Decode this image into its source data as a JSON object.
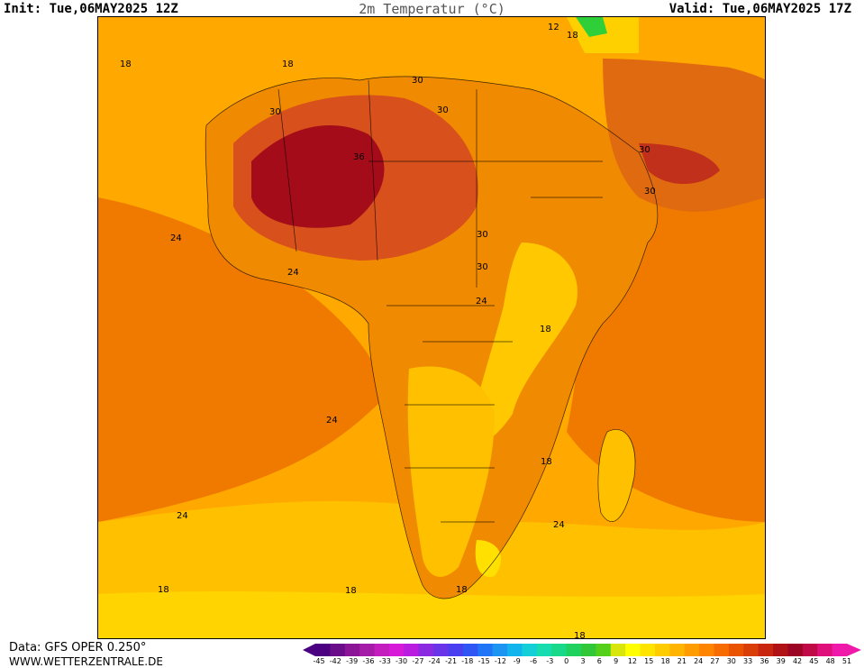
{
  "header": {
    "init": "Init: Tue,06MAY2025 12Z",
    "title": "2m Temperatur (°C)",
    "valid": "Valid: Tue,06MAY2025 17Z"
  },
  "footer": {
    "source": "Data: GFS OPER 0.250°",
    "website": "WWW.WETTERZENTRALE.DE"
  },
  "map": {
    "region": "Africa",
    "contour_labels": [
      "18",
      "18",
      "24",
      "30",
      "30",
      "36",
      "30",
      "30",
      "30",
      "24",
      "30",
      "30",
      "24",
      "18",
      "24",
      "18",
      "24",
      "18",
      "18",
      "18",
      "24",
      "18",
      "12",
      "18"
    ]
  },
  "colorbar": {
    "ticks": [
      "-45",
      "-42",
      "-39",
      "-36",
      "-33",
      "-30",
      "-27",
      "-24",
      "-21",
      "-18",
      "-15",
      "-12",
      "-9",
      "-6",
      "-3",
      "0",
      "3",
      "6",
      "9",
      "12",
      "15",
      "18",
      "21",
      "24",
      "27",
      "30",
      "33",
      "36",
      "39",
      "42",
      "45",
      "48",
      "51"
    ],
    "colors": [
      "#4b0082",
      "#6a0d8a",
      "#8b1596",
      "#a51ca8",
      "#c41fbe",
      "#d61ad8",
      "#b81de0",
      "#8a2be2",
      "#6a35e8",
      "#4a3ff0",
      "#2f55f4",
      "#1f75f5",
      "#1c95f2",
      "#12b4ee",
      "#14cfd8",
      "#16dcb0",
      "#18d98a",
      "#1fd25e",
      "#30c838",
      "#55d01a",
      "#d9e60c",
      "#ffff00",
      "#ffe400",
      "#ffcc00",
      "#ffb400",
      "#ff9c00",
      "#ff8400",
      "#f76c00",
      "#ea5400",
      "#da3e08",
      "#c8260f",
      "#b01216",
      "#9c0624",
      "#c00a48",
      "#e0107a",
      "#f01aaa"
    ]
  }
}
